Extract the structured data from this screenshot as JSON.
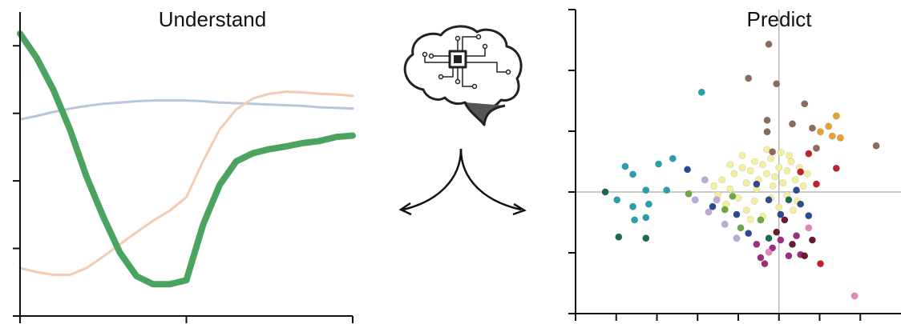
{
  "chart_data": [
    {
      "type": "line",
      "title": "Understand",
      "x": [
        0,
        0.1,
        0.2,
        0.3,
        0.4,
        0.5,
        0.6,
        0.7,
        0.8,
        0.9,
        1.0,
        1.1,
        1.2,
        1.3,
        1.4,
        1.5,
        1.6,
        1.7,
        1.8,
        1.9,
        2.0
      ],
      "xlim": [
        0,
        2
      ],
      "xticks": [
        0,
        1,
        2
      ],
      "ylim": [
        0,
        4.5
      ],
      "yticks": [
        0,
        1,
        2,
        3,
        4
      ],
      "series": [
        {
          "color": "#b7c6dd",
          "values": [
            2.91,
            2.96,
            3.02,
            3.07,
            3.11,
            3.14,
            3.16,
            3.18,
            3.19,
            3.19,
            3.19,
            3.18,
            3.16,
            3.15,
            3.14,
            3.13,
            3.12,
            3.11,
            3.09,
            3.08,
            3.07
          ]
        },
        {
          "color": "#f2cbb3",
          "values": [
            0.71,
            0.65,
            0.61,
            0.61,
            0.71,
            0.88,
            1.06,
            1.24,
            1.41,
            1.56,
            1.76,
            2.29,
            2.76,
            3.06,
            3.22,
            3.29,
            3.32,
            3.31,
            3.29,
            3.28,
            3.26
          ]
        },
        {
          "color": "#4aa35e",
          "values": [
            4.18,
            3.82,
            3.35,
            2.76,
            2.06,
            1.47,
            0.94,
            0.59,
            0.47,
            0.47,
            0.53,
            1.35,
            1.94,
            2.29,
            2.41,
            2.47,
            2.51,
            2.56,
            2.59,
            2.65,
            2.67
          ]
        }
      ]
    },
    {
      "type": "scatter",
      "title": "Predict",
      "xlim": [
        -5,
        3
      ],
      "xticks": [
        -5,
        -4,
        -3,
        -2,
        -1,
        0,
        1,
        2
      ],
      "ylim": [
        -2,
        3
      ],
      "yticks": [
        -2,
        -1,
        0,
        1,
        2,
        3
      ],
      "zero_lines": true,
      "series": [
        {
          "color": "#f4efa0",
          "x": [
            -1.6,
            -1.4,
            -1.2,
            -1.1,
            -0.9,
            -0.8,
            -0.7,
            -0.6,
            -0.5,
            -0.4,
            -0.3,
            -0.2,
            -0.1,
            0,
            0.1,
            0.2,
            0.3,
            0.4,
            0.5,
            0.6,
            -1.3,
            -1.0,
            -0.8,
            -0.6,
            -0.4,
            -0.2,
            0,
            0.2,
            0.35,
            -0.9,
            -0.3,
            0.05,
            -0.55,
            -1.5,
            0.7,
            -0.15,
            -0.7,
            0.45,
            -1.2,
            0.25
          ],
          "values": [
            0.1,
            0.2,
            0.05,
            0.3,
            0.4,
            0.15,
            0.35,
            0.5,
            0.2,
            0.45,
            0.3,
            0.55,
            0.25,
            0.4,
            0.15,
            0.35,
            0.5,
            0.2,
            0.4,
            0.1,
            -0.2,
            -0.1,
            -0.3,
            -0.15,
            -0.4,
            -0.1,
            -0.25,
            -0.05,
            -0.3,
            0.6,
            0.7,
            0.65,
            0.05,
            -0.05,
            0.3,
            0.1,
            -0.45,
            -0.15,
            0.45,
            0.6
          ]
        },
        {
          "color": "#2a9db0",
          "x": [
            -3.78,
            -3.59,
            -2.96,
            -2.61,
            -1.9,
            -3.98,
            -3.59,
            -3.27,
            -2.76,
            -3.55,
            -3.27,
            -3.2
          ],
          "values": [
            0.42,
            0.29,
            0.46,
            0.55,
            1.64,
            -0.13,
            -0.24,
            0.03,
            0.03,
            -0.46,
            -0.42,
            -0.2
          ]
        },
        {
          "color": "#1f6b4f",
          "x": [
            -4.27,
            -3.94,
            -3.27,
            -0.25,
            0.24
          ],
          "values": [
            0,
            -0.74,
            -0.76,
            -0.76,
            -0.13
          ]
        },
        {
          "color": "#8c6b5b",
          "x": [
            -0.25,
            -0.75,
            -0.06,
            -0.29,
            -0.29,
            0.33,
            0.82,
            0.63,
            2.39,
            0.92,
            -0.16
          ],
          "values": [
            2.43,
            1.87,
            1.78,
            1.18,
            0.99,
            1.12,
            1.05,
            1.45,
            0.76,
            0.72,
            0.66
          ]
        },
        {
          "color": "#e8a032",
          "x": [
            1.41,
            1.22,
            1.31,
            1.51,
            1.02
          ],
          "values": [
            1.25,
            1.08,
            0.92,
            0.89,
            0.99
          ]
        },
        {
          "color": "#c0222e",
          "x": [
            1.41,
            0.73,
            0.53,
            0.92,
            1.02
          ],
          "values": [
            0.39,
            0.63,
            0.33,
            0.13,
            -1.18
          ]
        },
        {
          "color": "#bcaad8",
          "x": [
            -2.06,
            -1.82,
            -1.73,
            -1.53,
            -1.33,
            -1.04
          ],
          "values": [
            -0.13,
            0.2,
            -0.33,
            -0.13,
            -0.53,
            -0.76
          ]
        },
        {
          "color": "#6fa843",
          "x": [
            -2.22,
            -1.33,
            -0.94,
            -1.14,
            -0.45
          ],
          "values": [
            -0.03,
            -0.29,
            -0.59,
            -0.07,
            -0.46
          ]
        },
        {
          "color": "#2c4b8d",
          "x": [
            -2.25,
            -1.63,
            -1.04,
            -0.75,
            -0.25,
            0.04,
            0.43,
            0.73,
            0.53,
            -0.55
          ],
          "values": [
            0.37,
            -0.24,
            -0.37,
            -0.68,
            -0.13,
            -0.37,
            0.03,
            -0.39,
            -0.2,
            0.13
          ]
        },
        {
          "color": "#9b2f7f",
          "x": [
            -0.45,
            -0.35,
            -0.16,
            0.04,
            0.24,
            0.43,
            0.53,
            -0.55
          ],
          "values": [
            -1.08,
            -1.18,
            -0.92,
            -0.79,
            -1.05,
            -0.72,
            -1.03,
            -0.86
          ]
        },
        {
          "color": "#6a1a30",
          "x": [
            -0.06,
            0.33,
            0.63,
            0.82,
            0.14
          ],
          "values": [
            -0.66,
            -0.86,
            -1.05,
            -0.79,
            -0.46
          ]
        },
        {
          "color": "#e585b5",
          "x": [
            1.86,
            0.73,
            -0.25
          ],
          "values": [
            -1.71,
            -0.59,
            -0.99
          ]
        }
      ]
    }
  ]
}
